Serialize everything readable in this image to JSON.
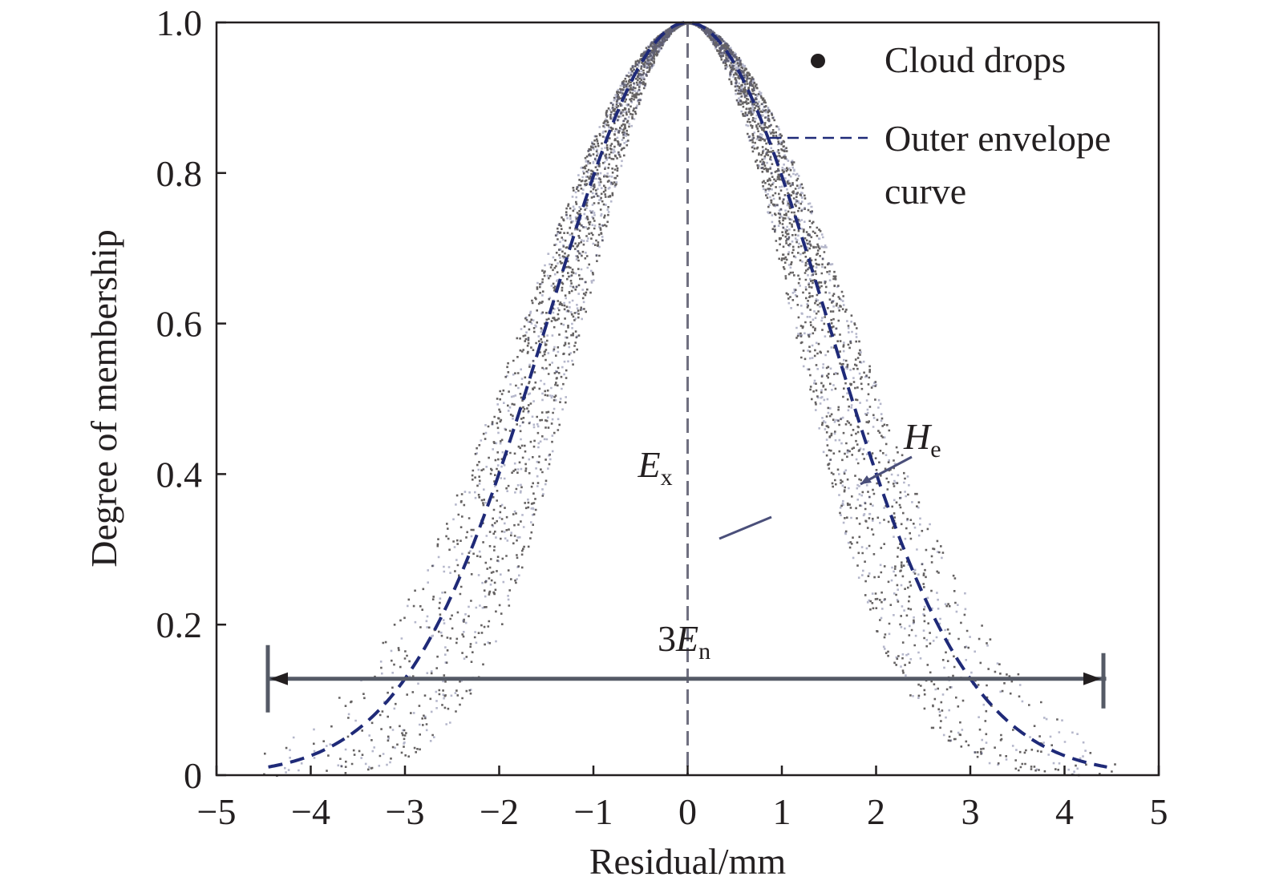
{
  "chart_data": {
    "type": "scatter",
    "title": "",
    "xlabel": "Residual/mm",
    "ylabel": "Degree of membership",
    "xlim": [
      -5,
      5
    ],
    "ylim": [
      0,
      1.0
    ],
    "x_ticks": [
      -5,
      -4,
      -3,
      -2,
      -1,
      0,
      1,
      2,
      3,
      4,
      5
    ],
    "x_tick_labels": [
      "−5",
      "−4",
      "−3",
      "−2",
      "−1",
      "0",
      "1",
      "2",
      "3",
      "4",
      "5"
    ],
    "y_ticks": [
      0,
      0.2,
      0.4,
      0.6,
      0.8,
      1.0
    ],
    "y_tick_labels": [
      "0",
      "0.2",
      "0.4",
      "0.6",
      "0.8",
      "1.0"
    ],
    "grid": false,
    "legend_position": "top-right",
    "series": [
      {
        "name": "Cloud drops",
        "kind": "scatter",
        "color": "#231f20",
        "center": 0,
        "spread_min": 1.1,
        "spread_max": 1.75,
        "count": 5000
      },
      {
        "name": "Outer envelope curve",
        "kind": "dashed-line",
        "color": "#1f2a78",
        "center": 0,
        "spread": 1.48
      }
    ],
    "legend_entries": [
      {
        "lines": [
          "Cloud drops"
        ]
      },
      {
        "lines": [
          "Outer envelope",
          "curve"
        ]
      }
    ],
    "annotations": {
      "ex": {
        "main": "E",
        "sub": "x",
        "x": 0
      },
      "he": {
        "main": "H",
        "sub": "e"
      },
      "en": {
        "prefix": "3",
        "main": "E",
        "sub": "n",
        "from": -4.4,
        "to": 4.4,
        "y": 0.128
      }
    }
  }
}
